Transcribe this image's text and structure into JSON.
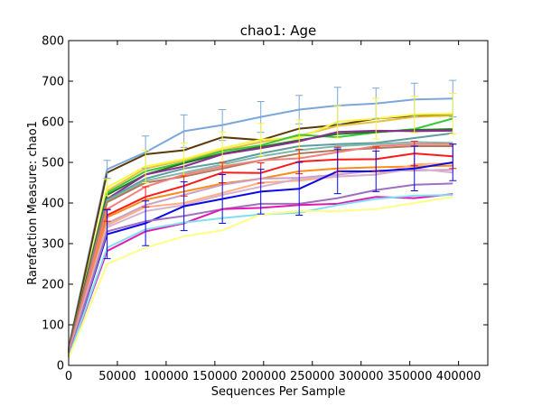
{
  "chart_data": {
    "type": "line",
    "title": "chao1: Age",
    "xlabel": "Sequences Per Sample",
    "ylabel": "Rarefaction Measure: chao1",
    "xlim": [
      0,
      430000
    ],
    "ylim": [
      0,
      800
    ],
    "x_ticks": [
      "0",
      "50000",
      "100000",
      "150000",
      "200000",
      "250000",
      "300000",
      "350000",
      "400000"
    ],
    "y_ticks": [
      "0",
      "100",
      "200",
      "300",
      "400",
      "500",
      "600",
      "700",
      "800"
    ],
    "grid": false,
    "legend": "none",
    "x": [
      10,
      39500,
      78900,
      118300,
      157700,
      197100,
      236500,
      275900,
      315300,
      354700,
      394100
    ],
    "series": [
      {
        "color": "#7ba7d9",
        "values": [
          45,
          483,
          525,
          577,
          592,
          612,
          630,
          640,
          645,
          655,
          657
        ],
        "err": [
          0,
          22,
          40,
          40,
          38,
          38,
          35,
          45,
          38,
          40,
          45
        ]
      },
      {
        "color": "#5a3a08",
        "values": [
          40,
          475,
          520,
          530,
          562,
          555,
          583,
          592,
          608,
          615,
          617
        ],
        "err": []
      },
      {
        "color": "#e8c040",
        "values": [
          38,
          430,
          485,
          505,
          530,
          550,
          565,
          590,
          600,
          612,
          615
        ],
        "err": []
      },
      {
        "color": "#f7f740",
        "values": [
          30,
          438,
          490,
          508,
          535,
          556,
          560,
          600,
          608,
          618,
          620
        ],
        "err": [
          0,
          20,
          40,
          40,
          40,
          40,
          45,
          40,
          50,
          45,
          50
        ]
      },
      {
        "color": "#38c838",
        "values": [
          35,
          425,
          478,
          500,
          528,
          542,
          568,
          562,
          574,
          582,
          608
        ],
        "err": []
      },
      {
        "color": "#287028",
        "values": [
          38,
          420,
          470,
          498,
          522,
          538,
          555,
          570,
          575,
          580,
          582
        ],
        "err": []
      },
      {
        "color": "#8b2d8f",
        "values": [
          36,
          410,
          470,
          490,
          520,
          535,
          552,
          575,
          578,
          577,
          578
        ],
        "err": []
      },
      {
        "color": "#5f9ea0",
        "values": [
          33,
          408,
          460,
          485,
          500,
          522,
          540,
          545,
          548,
          560,
          572
        ],
        "err": []
      },
      {
        "color": "#7fb8a8",
        "values": [
          32,
          405,
          455,
          475,
          495,
          515,
          530,
          540,
          545,
          550,
          548
        ],
        "err": []
      },
      {
        "color": "#b07a5a",
        "values": [
          33,
          402,
          450,
          465,
          485,
          505,
          522,
          530,
          535,
          540,
          540
        ],
        "err": []
      },
      {
        "color": "#ff1a1a",
        "values": [
          30,
          370,
          415,
          442,
          475,
          474,
          502,
          507,
          508,
          522,
          515
        ],
        "err": [
          0,
          15,
          25,
          25,
          25,
          25,
          30,
          30,
          30,
          30,
          30
        ]
      },
      {
        "color": "#ff8c1a",
        "values": [
          28,
          365,
          408,
          428,
          448,
          460,
          478,
          485,
          488,
          490,
          492
        ],
        "err": []
      },
      {
        "color": "#f08080",
        "values": [
          30,
          385,
          440,
          470,
          490,
          505,
          510,
          525,
          540,
          545,
          545
        ],
        "err": []
      },
      {
        "color": "#c8a0c8",
        "values": [
          26,
          350,
          395,
          420,
          445,
          460,
          462,
          470,
          480,
          480,
          482
        ],
        "err": []
      },
      {
        "color": "#ffb080",
        "values": [
          25,
          345,
          390,
          400,
          425,
          450,
          455,
          465,
          470,
          495,
          498
        ],
        "err": []
      },
      {
        "color": "#d8b0d0",
        "values": [
          24,
          340,
          380,
          395,
          420,
          440,
          460,
          465,
          470,
          485,
          475
        ],
        "err": []
      },
      {
        "color": "#0a0ae8",
        "values": [
          22,
          323,
          350,
          392,
          410,
          428,
          435,
          478,
          478,
          485,
          500
        ],
        "err": [
          0,
          60,
          55,
          60,
          60,
          55,
          65,
          55,
          50,
          55,
          45
        ]
      },
      {
        "color": "#a070c0",
        "values": [
          22,
          330,
          355,
          368,
          385,
          398,
          398,
          412,
          432,
          445,
          448
        ],
        "err": []
      },
      {
        "color": "#e01ab0",
        "values": [
          20,
          282,
          330,
          350,
          385,
          388,
          395,
          398,
          415,
          412,
          422
        ],
        "err": []
      },
      {
        "color": "#80e0f0",
        "values": [
          20,
          290,
          335,
          352,
          363,
          372,
          376,
          395,
          410,
          418,
          420
        ],
        "err": []
      },
      {
        "color": "#ffff88",
        "values": [
          18,
          250,
          290,
          318,
          333,
          372,
          380,
          380,
          385,
          400,
          415
        ],
        "err": []
      }
    ]
  }
}
